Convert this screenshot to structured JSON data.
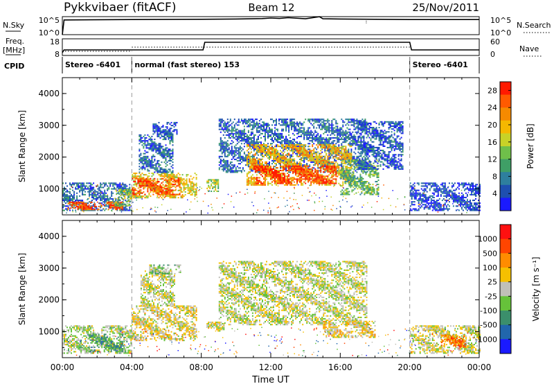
{
  "header": {
    "station": "Pykkvibaer (fitACF)",
    "beam": "Beam 12",
    "date": "25/Nov/2011"
  },
  "noise_panel": {
    "left_label": "N.Sky",
    "right_label": "N.Search",
    "left_ticks": [
      "10^5",
      "10^0"
    ],
    "right_ticks": [
      "10^5",
      "10^0"
    ]
  },
  "freq_panel": {
    "left_label_lines": [
      "Freq.",
      "[MHz]"
    ],
    "right_label": "Nave",
    "left_ticks": [
      "18",
      "8"
    ],
    "right_ticks": [
      "60",
      "0"
    ]
  },
  "cpid_panel": {
    "label": "CPID",
    "segments": [
      {
        "text": "Stereo -6401",
        "start_h": 0,
        "end_h": 4
      },
      {
        "text": "normal (fast stereo) 153",
        "start_h": 4,
        "end_h": 20
      },
      {
        "text": "Stereo -6401",
        "start_h": 20,
        "end_h": 24
      }
    ]
  },
  "x_axis": {
    "label": "Time UT",
    "range_h": [
      0,
      24
    ],
    "ticks": [
      "00:00",
      "04:00",
      "08:00",
      "12:00",
      "16:00",
      "20:00",
      "00:00"
    ]
  },
  "mode_boundaries_h": [
    4,
    20
  ],
  "chart_data": [
    {
      "type": "heatmap",
      "ylabel": "Slant Range [km]",
      "ylim": [
        180,
        4500
      ],
      "yticks": [
        "1000",
        "2000",
        "3000",
        "4000"
      ],
      "colorbar": {
        "label": "Power [dB]",
        "tick_labels": [
          "4",
          "8",
          "12",
          "16",
          "20",
          "24",
          "28"
        ],
        "range": [
          0,
          30
        ],
        "colors": [
          "#1a1aff",
          "#1e4fb0",
          "#2e7f9e",
          "#3f9f66",
          "#6fbf4a",
          "#c8d227",
          "#f5b800",
          "#f58a00",
          "#ff5a00",
          "#ff1a00"
        ]
      },
      "echo_regions": [
        {
          "t0": 0.0,
          "t1": 4.0,
          "r0": 300,
          "r1": 1200,
          "value": 6
        },
        {
          "t0": 0.3,
          "t1": 3.5,
          "r0": 330,
          "r1": 560,
          "value": 26
        },
        {
          "t0": 3.0,
          "t1": 4.0,
          "r0": 450,
          "r1": 950,
          "value": 14
        },
        {
          "t0": 4.0,
          "t1": 7.7,
          "r0": 700,
          "r1": 1500,
          "value": 18
        },
        {
          "t0": 4.0,
          "t1": 6.8,
          "r0": 800,
          "r1": 1300,
          "value": 26
        },
        {
          "t0": 4.4,
          "t1": 6.4,
          "r0": 1500,
          "r1": 2700,
          "value": 6
        },
        {
          "t0": 5.2,
          "t1": 6.6,
          "r0": 2700,
          "r1": 3100,
          "value": 4
        },
        {
          "t0": 8.3,
          "t1": 9.0,
          "r0": 900,
          "r1": 1300,
          "value": 14
        },
        {
          "t0": 9.0,
          "t1": 17.5,
          "r0": 1500,
          "r1": 3200,
          "value": 6
        },
        {
          "t0": 10.6,
          "t1": 16.6,
          "r0": 1100,
          "r1": 2400,
          "value": 20
        },
        {
          "t0": 11.0,
          "t1": 15.8,
          "r0": 1150,
          "r1": 1700,
          "value": 28
        },
        {
          "t0": 16.0,
          "t1": 18.2,
          "r0": 800,
          "r1": 1900,
          "value": 12
        },
        {
          "t0": 17.0,
          "t1": 19.6,
          "r0": 1600,
          "r1": 3100,
          "value": 5
        },
        {
          "t0": 20.0,
          "t1": 24.0,
          "r0": 300,
          "r1": 1200,
          "value": 4
        }
      ]
    },
    {
      "type": "heatmap",
      "ylabel": "Slant Range [km]",
      "ylim": [
        180,
        4500
      ],
      "yticks": [
        "1000",
        "2000",
        "3000",
        "4000"
      ],
      "colorbar": {
        "label": "Velocity [m s⁻¹]",
        "tick_labels": [
          "1000",
          "500",
          "100",
          "25",
          "-25",
          "-100",
          "-500",
          "-1000"
        ],
        "range": [
          -1200,
          1200
        ],
        "colors": [
          "#1a1aff",
          "#2166ac",
          "#3b8f6b",
          "#66c23a",
          "#c0c0b8",
          "#f5c000",
          "#ff8c00",
          "#ff4500",
          "#ff1010"
        ]
      },
      "echo_regions": [
        {
          "t0": 0.0,
          "t1": 4.0,
          "r0": 300,
          "r1": 1200,
          "value": -80
        },
        {
          "t0": 1.5,
          "t1": 3.5,
          "r0": 350,
          "r1": 900,
          "value": -400
        },
        {
          "t0": 4.0,
          "t1": 7.7,
          "r0": 700,
          "r1": 1800,
          "value": 120
        },
        {
          "t0": 4.5,
          "t1": 6.5,
          "r0": 1800,
          "r1": 2900,
          "value": 0
        },
        {
          "t0": 5.0,
          "t1": 6.8,
          "r0": 2800,
          "r1": 3100,
          "value": -150
        },
        {
          "t0": 8.3,
          "t1": 9.3,
          "r0": 1000,
          "r1": 1300,
          "value": 120
        },
        {
          "t0": 9.0,
          "t1": 17.5,
          "r0": 1200,
          "r1": 3200,
          "value": 0
        },
        {
          "t0": 15.0,
          "t1": 18.0,
          "r0": 800,
          "r1": 1300,
          "value": 150
        },
        {
          "t0": 20.0,
          "t1": 24.0,
          "r0": 300,
          "r1": 1200,
          "value": 50
        },
        {
          "t0": 21.8,
          "t1": 23.2,
          "r0": 500,
          "r1": 900,
          "value": 600
        }
      ]
    },
    {
      "type": "line",
      "panel": "noise",
      "series": [
        {
          "x": [
            0,
            0.1,
            4,
            8,
            10,
            11.5,
            12,
            12.5,
            13,
            14,
            14.8,
            15,
            16,
            18,
            20,
            22,
            24
          ],
          "y": [
            0,
            30000,
            40000,
            50000,
            60000,
            80000,
            120000,
            90000,
            150000,
            70000,
            300000,
            70000,
            60000,
            50000,
            40000,
            40000,
            40000
          ]
        }
      ]
    },
    {
      "type": "line",
      "panel": "frequency",
      "series": [
        {
          "x": [
            0,
            0.1,
            8.1,
            8.2,
            20,
            20.1,
            24
          ],
          "y": [
            9,
            11,
            11,
            16.5,
            16.5,
            11,
            11
          ]
        }
      ]
    }
  ]
}
